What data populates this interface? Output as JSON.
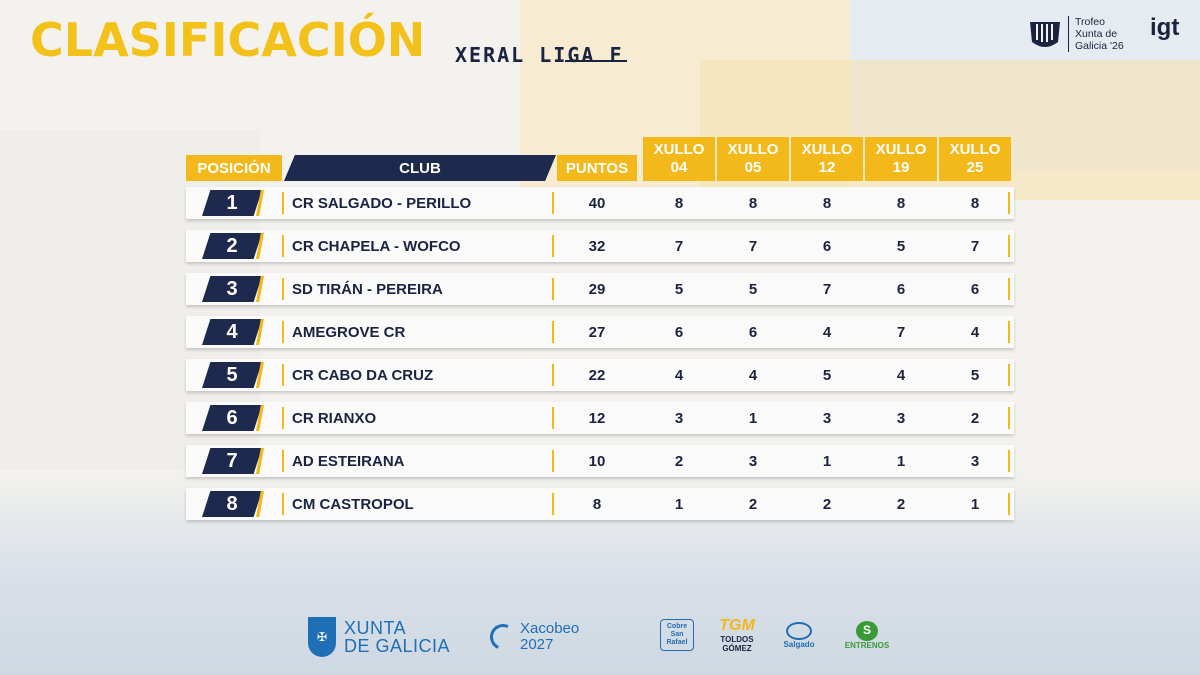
{
  "header": {
    "title": "CLASIFICACIÓN",
    "subtitle": "XERAL LIGA F",
    "brand_text": "Trofeo\nXunta de\nGalicia '26",
    "brand_mark": "igt"
  },
  "table": {
    "col_position": "POSICIÓN",
    "col_club": "CLUB",
    "col_points": "PUNTOS",
    "day_headers": [
      {
        "month": "XULLO",
        "day": "04"
      },
      {
        "month": "XULLO",
        "day": "05"
      },
      {
        "month": "XULLO",
        "day": "12"
      },
      {
        "month": "XULLO",
        "day": "19"
      },
      {
        "month": "XULLO",
        "day": "25"
      }
    ],
    "rows": [
      {
        "pos": "1",
        "club": "CR SALGADO - PERILLO",
        "points": "40",
        "days": [
          "8",
          "8",
          "8",
          "8",
          "8"
        ]
      },
      {
        "pos": "2",
        "club": "CR CHAPELA - WOFCO",
        "points": "32",
        "days": [
          "7",
          "7",
          "6",
          "5",
          "7"
        ]
      },
      {
        "pos": "3",
        "club": "SD TIRÁN - PEREIRA",
        "points": "29",
        "days": [
          "5",
          "5",
          "7",
          "6",
          "6"
        ]
      },
      {
        "pos": "4",
        "club": "AMEGROVE CR",
        "points": "27",
        "days": [
          "6",
          "6",
          "4",
          "7",
          "4"
        ]
      },
      {
        "pos": "5",
        "club": "CR CABO DA CRUZ",
        "points": "22",
        "days": [
          "4",
          "4",
          "5",
          "4",
          "5"
        ]
      },
      {
        "pos": "6",
        "club": "CR RIANXO",
        "points": "12",
        "days": [
          "3",
          "1",
          "3",
          "3",
          "2"
        ]
      },
      {
        "pos": "7",
        "club": "AD ESTEIRANA",
        "points": "10",
        "days": [
          "2",
          "3",
          "1",
          "1",
          "3"
        ]
      },
      {
        "pos": "8",
        "club": "CM CASTROPOL",
        "points": "8",
        "days": [
          "1",
          "2",
          "2",
          "2",
          "1"
        ]
      }
    ]
  },
  "footer": {
    "xunta": "XUNTA\nDE GALICIA",
    "xacobeo": "Xacobeo\n2027",
    "sponsor1": "Cobre\nSan\nRafael",
    "sponsor2_mark": "TGM",
    "sponsor2": "TOLDOS GÓMEZ",
    "sponsor3": "Salgado",
    "sponsor4": "ENTRENOS"
  },
  "colors": {
    "accent_yellow": "#f3b81a",
    "navy": "#1d2a4d",
    "title_yellow": "#f3c21a"
  }
}
